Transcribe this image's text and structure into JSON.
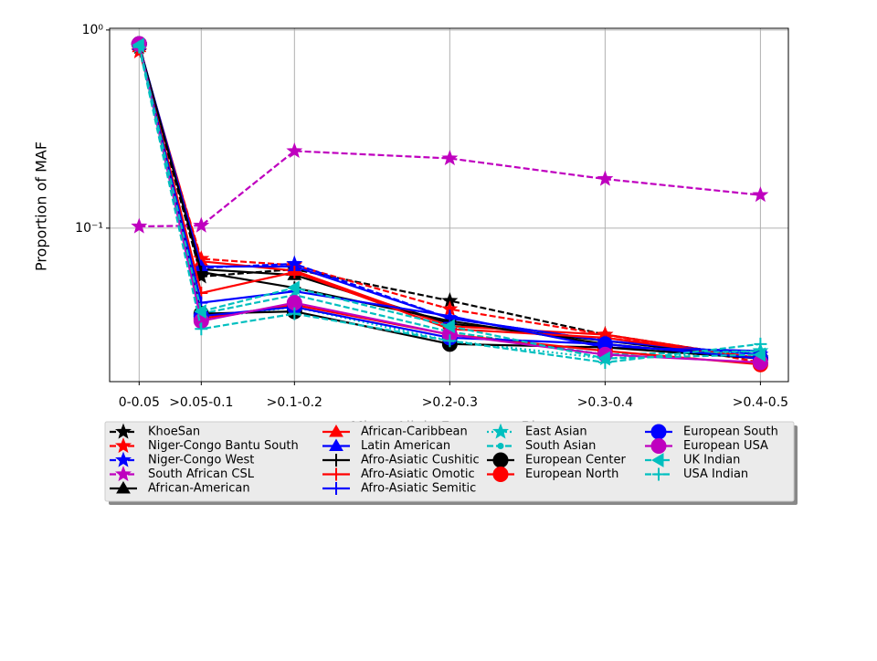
{
  "chart_data": {
    "type": "line",
    "ylabel": "Proportion of MAF",
    "xlabel": "Minor Allele Frequency Bin",
    "log_y": true,
    "grid": true,
    "legend": "bottom",
    "x": [
      0,
      0.04,
      0.1,
      0.2,
      0.3,
      0.4
    ],
    "xlim": [
      -0.019,
      0.418
    ],
    "xticks": [
      {
        "value": 0,
        "label": "0-0.05"
      },
      {
        "value": 0.04,
        "label": ">0.05-0.1"
      },
      {
        "value": 0.1,
        "label": ">0.1-0.2"
      },
      {
        "value": 0.2,
        "label": ">0.2-0.3"
      },
      {
        "value": 0.3,
        "label": ">0.3-0.4"
      },
      {
        "value": 0.4,
        "label": ">0.4-0.5"
      }
    ],
    "ylim": [
      0.0168,
      1.02
    ],
    "yticks": [
      {
        "value": 0.1,
        "label": "10⁻¹"
      },
      {
        "value": 1,
        "label": "10⁰"
      }
    ],
    "series": [
      {
        "name": "KhoeSan",
        "color": "#000000",
        "marker": "star",
        "dash": "dashed",
        "values": [
          0.82,
          0.057,
          0.062,
          0.043,
          0.029,
          0.022
        ]
      },
      {
        "name": "Niger-Congo Bantu South",
        "color": "#ff0000",
        "marker": "star",
        "dash": "dashed",
        "values": [
          0.78,
          0.07,
          0.065,
          0.039,
          0.029,
          0.021
        ]
      },
      {
        "name": "Niger-Congo West",
        "color": "#0000ff",
        "marker": "star",
        "dash": "dashed",
        "values": [
          0.84,
          0.063,
          0.066,
          0.035,
          0.027,
          0.023
        ]
      },
      {
        "name": "South African CSL",
        "color": "#bf00bf",
        "marker": "star",
        "dash": "dashed",
        "values": [
          0.102,
          0.103,
          0.245,
          0.225,
          0.177,
          0.147
        ]
      },
      {
        "name": "African-American",
        "color": "#000000",
        "marker": "triangle",
        "dash": "solid",
        "values": [
          0.84,
          0.062,
          0.058,
          0.033,
          0.027,
          0.022
        ]
      },
      {
        "name": "African-Caribbean",
        "color": "#ff0000",
        "marker": "triangle",
        "dash": "solid",
        "values": [
          0.82,
          0.068,
          0.061,
          0.032,
          0.029,
          0.022
        ]
      },
      {
        "name": "Latin American",
        "color": "#0000ff",
        "marker": "triangle",
        "dash": "solid",
        "values": [
          0.84,
          0.064,
          0.064,
          0.035,
          0.027,
          0.023
        ]
      },
      {
        "name": "Afro-Asiatic Cushitic",
        "color": "#000000",
        "marker": "plus",
        "dash": "solid",
        "values": [
          0.84,
          0.06,
          0.05,
          0.034,
          0.026,
          0.022
        ]
      },
      {
        "name": "Afro-Asiatic Omotic",
        "color": "#ff0000",
        "marker": "plus",
        "dash": "solid",
        "values": [
          0.83,
          0.047,
          0.06,
          0.031,
          0.028,
          0.022
        ]
      },
      {
        "name": "Afro-Asiatic Semitic",
        "color": "#0000ff",
        "marker": "plus",
        "dash": "solid",
        "values": [
          0.84,
          0.042,
          0.048,
          0.036,
          0.025,
          0.024
        ]
      },
      {
        "name": "East Asian",
        "color": "#00bfbf",
        "marker": "star",
        "dash": "dotted",
        "values": [
          0.83,
          0.035,
          0.04,
          0.027,
          0.022,
          0.024
        ]
      },
      {
        "name": "South Asian",
        "color": "#00bfbf",
        "marker": "dot",
        "dash": "dashed",
        "values": [
          0.83,
          0.037,
          0.046,
          0.03,
          0.023,
          0.024
        ]
      },
      {
        "name": "European Center",
        "color": "#000000",
        "marker": "circle",
        "dash": "solid",
        "values": [
          0.85,
          0.037,
          0.038,
          0.026,
          0.025,
          0.022
        ]
      },
      {
        "name": "European North",
        "color": "#ff0000",
        "marker": "circle",
        "dash": "solid",
        "values": [
          0.85,
          0.035,
          0.041,
          0.029,
          0.024,
          0.0205
        ]
      },
      {
        "name": "European South",
        "color": "#0000ff",
        "marker": "circle",
        "dash": "solid",
        "values": [
          0.85,
          0.036,
          0.04,
          0.028,
          0.026,
          0.022
        ]
      },
      {
        "name": "European USA",
        "color": "#bf00bf",
        "marker": "circle",
        "dash": "solid",
        "values": [
          0.85,
          0.034,
          0.042,
          0.029,
          0.023,
          0.021
        ]
      },
      {
        "name": "UK Indian",
        "color": "#00bfbf",
        "marker": "triangle-left",
        "dash": "dashed",
        "values": [
          0.84,
          0.038,
          0.05,
          0.032,
          0.022,
          0.023
        ]
      },
      {
        "name": "USA Indian",
        "color": "#00bfbf",
        "marker": "plus",
        "dash": "dashed",
        "values": [
          0.82,
          0.031,
          0.037,
          0.027,
          0.021,
          0.026
        ]
      }
    ]
  }
}
